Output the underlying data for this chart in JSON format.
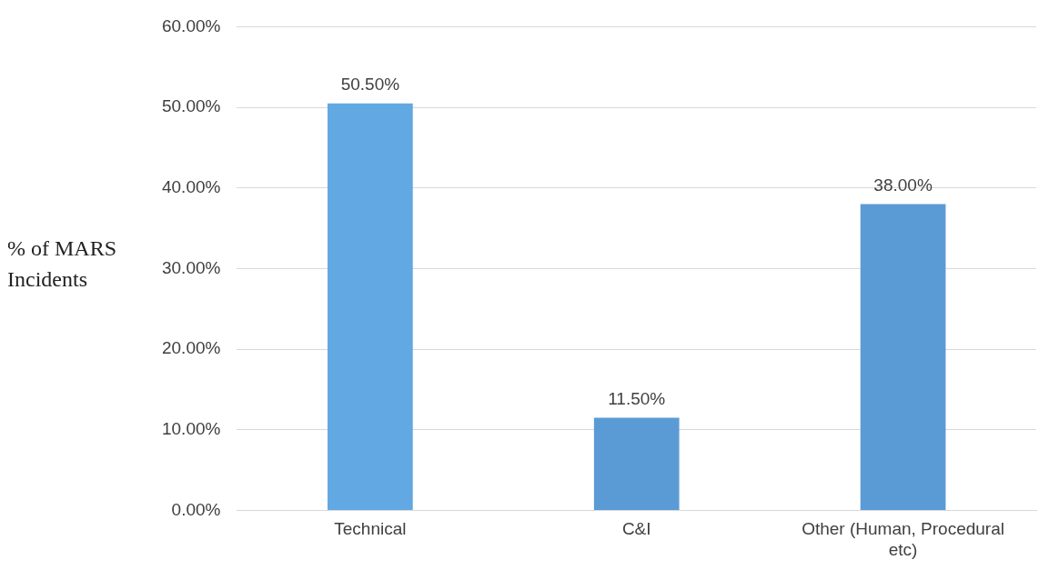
{
  "chart_data": {
    "type": "bar",
    "ylabel": "% of MARS Incidents",
    "categories": [
      "Technical",
      "C&I",
      "Other (Human, Procedural etc)"
    ],
    "values": [
      50.5,
      11.5,
      38.0
    ],
    "colors": [
      "#62a8e2",
      "#5b9bd5",
      "#5b9bd5"
    ],
    "value_labels": [
      "50.50%",
      "11.50%",
      "38.00%"
    ],
    "ylim": [
      0,
      60
    ],
    "yticks": [
      {
        "value": 0,
        "label": "0.00%"
      },
      {
        "value": 10,
        "label": "10.00%"
      },
      {
        "value": 20,
        "label": "20.00%"
      },
      {
        "value": 30,
        "label": "30.00%"
      },
      {
        "value": 40,
        "label": "40.00%"
      },
      {
        "value": 50,
        "label": "50.00%"
      },
      {
        "value": 60,
        "label": "60.00%"
      }
    ],
    "grid": "y",
    "legend": false
  }
}
